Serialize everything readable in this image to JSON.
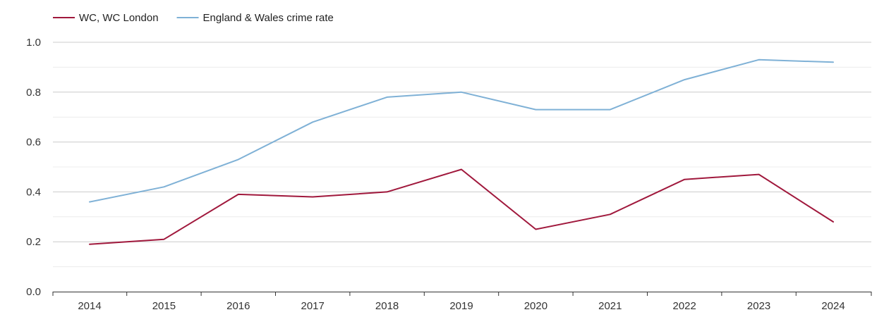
{
  "chart_data": {
    "type": "line",
    "title": "",
    "xlabel": "",
    "ylabel": "",
    "x": [
      "2014",
      "2015",
      "2016",
      "2017",
      "2018",
      "2019",
      "2020",
      "2021",
      "2022",
      "2023",
      "2024"
    ],
    "ylim": [
      0,
      1
    ],
    "y_ticks": [
      "0.0",
      "0.2",
      "0.4",
      "0.6",
      "0.8",
      "1.0"
    ],
    "grid": true,
    "legend_position": "top-left",
    "series": [
      {
        "name": "WC, WC London",
        "color": "#a0183c",
        "values": [
          0.19,
          0.21,
          0.39,
          0.38,
          0.4,
          0.49,
          0.25,
          0.31,
          0.45,
          0.47,
          0.28
        ]
      },
      {
        "name": "England & Wales crime rate",
        "color": "#7fb1d6",
        "values": [
          0.36,
          0.42,
          0.53,
          0.68,
          0.78,
          0.8,
          0.73,
          0.73,
          0.85,
          0.93,
          0.92
        ]
      }
    ]
  }
}
